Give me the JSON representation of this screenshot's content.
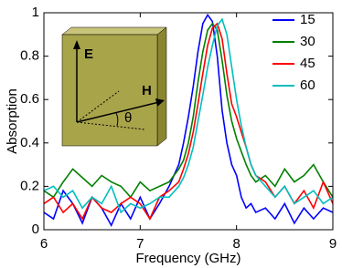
{
  "chart_data": {
    "type": "line",
    "xlabel": "Frequency (GHz)",
    "ylabel": "Absorption",
    "annotations": [
      "E",
      "H",
      "θ"
    ],
    "legend": "top-right",
    "x": [
      6.0,
      6.1,
      6.2,
      6.3,
      6.4,
      6.5,
      6.6,
      6.7,
      6.8,
      6.9,
      7.0,
      7.1,
      7.2,
      7.3,
      7.4,
      7.45,
      7.5,
      7.55,
      7.6,
      7.65,
      7.7,
      7.75,
      7.8,
      7.85,
      7.9,
      7.95,
      8.0,
      8.05,
      8.1,
      8.15,
      8.2,
      8.3,
      8.4,
      8.5,
      8.6,
      8.7,
      8.8,
      8.9,
      9.0
    ],
    "series": [
      {
        "name": "15",
        "color": "#0000ff",
        "values": [
          0.08,
          0.05,
          0.18,
          0.12,
          0.03,
          0.15,
          0.1,
          0.02,
          0.12,
          0.05,
          0.15,
          0.05,
          0.12,
          0.2,
          0.3,
          0.4,
          0.52,
          0.66,
          0.82,
          0.95,
          0.99,
          0.96,
          0.8,
          0.55,
          0.4,
          0.3,
          0.25,
          0.15,
          0.1,
          0.12,
          0.08,
          0.1,
          0.05,
          0.12,
          0.03,
          0.1,
          0.05,
          0.1,
          0.08
        ]
      },
      {
        "name": "30",
        "color": "#008000",
        "values": [
          0.18,
          0.15,
          0.22,
          0.28,
          0.24,
          0.2,
          0.25,
          0.22,
          0.2,
          0.15,
          0.22,
          0.18,
          0.2,
          0.22,
          0.28,
          0.32,
          0.4,
          0.52,
          0.68,
          0.82,
          0.92,
          0.95,
          0.92,
          0.78,
          0.62,
          0.5,
          0.42,
          0.36,
          0.3,
          0.25,
          0.22,
          0.25,
          0.2,
          0.28,
          0.22,
          0.25,
          0.3,
          0.22,
          0.15
        ]
      },
      {
        "name": "45",
        "color": "#ff0000",
        "values": [
          0.12,
          0.15,
          0.08,
          0.12,
          0.05,
          0.15,
          0.1,
          0.08,
          0.12,
          0.15,
          0.12,
          0.05,
          0.15,
          0.18,
          0.22,
          0.28,
          0.35,
          0.45,
          0.58,
          0.72,
          0.85,
          0.93,
          0.95,
          0.88,
          0.72,
          0.58,
          0.52,
          0.45,
          0.38,
          0.3,
          0.25,
          0.22,
          0.15,
          0.2,
          0.12,
          0.18,
          0.1,
          0.22,
          0.12
        ]
      },
      {
        "name": "60",
        "color": "#00bfbf",
        "values": [
          0.18,
          0.2,
          0.15,
          0.18,
          0.1,
          0.15,
          0.12,
          0.2,
          0.08,
          0.12,
          0.1,
          0.12,
          0.15,
          0.15,
          0.2,
          0.24,
          0.3,
          0.38,
          0.5,
          0.62,
          0.75,
          0.85,
          0.94,
          0.97,
          0.9,
          0.75,
          0.6,
          0.48,
          0.38,
          0.3,
          0.25,
          0.2,
          0.15,
          0.2,
          0.12,
          0.15,
          0.18,
          0.12,
          0.15
        ]
      }
    ],
    "xlim": [
      6,
      9
    ],
    "xticks": [
      6,
      7,
      8,
      9
    ],
    "ylim": [
      0,
      1
    ],
    "yticks": [
      0,
      0.2,
      0.4,
      0.6,
      0.8,
      1
    ]
  }
}
